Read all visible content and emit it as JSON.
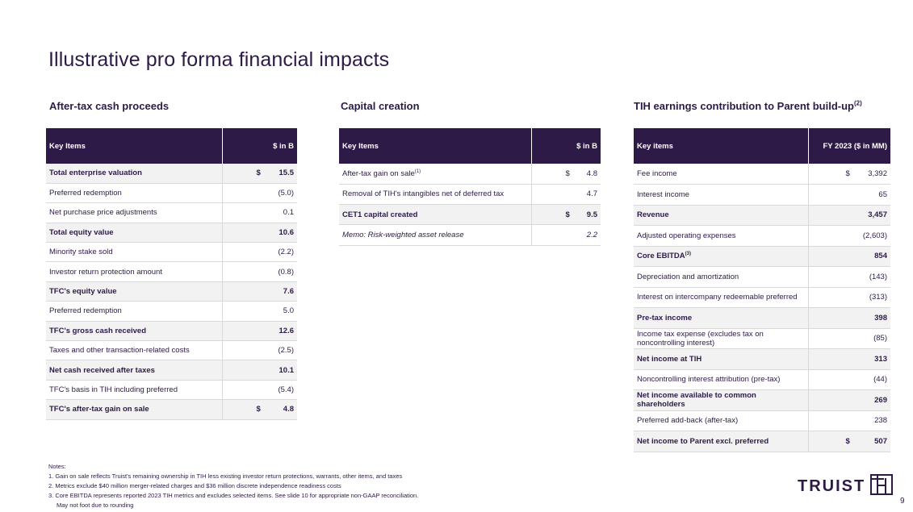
{
  "title": "Illustrative pro forma financial impacts",
  "sections": {
    "cash": {
      "title": "After-tax cash proceeds",
      "header": [
        "Key Items",
        "$ in B"
      ],
      "rows": [
        {
          "label": "Total enterprise valuation",
          "currency": "$",
          "value": "15.5"
        },
        {
          "label": "Preferred redemption",
          "value": "(5.0)"
        },
        {
          "label": "Net purchase price adjustments",
          "value": "0.1"
        },
        {
          "label": "Total equity value",
          "value": "10.6"
        },
        {
          "label": "Minority stake sold",
          "value": "(2.2)"
        },
        {
          "label": "Investor return protection amount",
          "value": "(0.8)"
        },
        {
          "label": "TFC's equity value",
          "value": "7.6"
        },
        {
          "label": "Preferred redemption",
          "value": "5.0"
        },
        {
          "label": "TFC's gross cash received",
          "value": "12.6"
        },
        {
          "label": "Taxes and other transaction-related costs",
          "value": "(2.5)"
        },
        {
          "label": "Net cash received after taxes",
          "value": "10.1"
        },
        {
          "label": "TFC's basis in TIH including preferred",
          "value": "(5.4)"
        },
        {
          "label": "TFC's after-tax gain on sale",
          "currency": "$",
          "value": "4.8"
        }
      ]
    },
    "capital": {
      "title": "Capital creation",
      "header": [
        "Key Items",
        "$ in B"
      ],
      "rows": [
        {
          "label": "After-tax gain on sale",
          "sup": "(1)",
          "currency": "$",
          "value": "4.8"
        },
        {
          "label": "Removal of TIH's intangibles net of deferred tax",
          "value": "4.7"
        },
        {
          "label": "CET1 capital created",
          "currency": "$",
          "value": "9.5"
        },
        {
          "label": "Memo: Risk-weighted asset release",
          "value": "2.2"
        }
      ]
    },
    "earnings": {
      "title": "TIH earnings contribution to Parent build-up",
      "title_sup": "(2)",
      "header": [
        "Key items",
        "FY 2023 ($ in MM)"
      ],
      "rows": [
        {
          "label": "Fee income",
          "currency": "$",
          "value": "3,392"
        },
        {
          "label": "Interest income",
          "value": "65"
        },
        {
          "label": "Revenue",
          "value": "3,457"
        },
        {
          "label": "Adjusted operating expenses",
          "value": "(2,603)"
        },
        {
          "label": "Core EBITDA",
          "sup": "(3)",
          "value": "854"
        },
        {
          "label": "Depreciation and amortization",
          "value": "(143)"
        },
        {
          "label": "Interest on intercompany redeemable preferred",
          "value": "(313)"
        },
        {
          "label": "Pre-tax income",
          "value": "398"
        },
        {
          "label": "Income tax expense (excludes tax on noncontrolling interest)",
          "value": "(85)"
        },
        {
          "label": "Net income at TIH",
          "value": "313"
        },
        {
          "label": "Noncontrolling interest attribution (pre-tax)",
          "value": "(44)"
        },
        {
          "label": "Net income available to common shareholders",
          "value": "269"
        },
        {
          "label": "Preferred add-back (after-tax)",
          "value": "238"
        },
        {
          "label": "Net income to Parent excl. preferred",
          "currency": "$",
          "value": "507"
        }
      ]
    }
  },
  "notes": {
    "heading": "Notes:",
    "items": [
      "1. Gain on sale reflects Truist's remaining ownership in TIH less existing investor return protections, warrants, other items, and taxes",
      "2. Metrics exclude $40 million merger-related charges and $36 million discrete independence readiness costs",
      "3. Core EBITDA represents reported 2023 TIH metrics and excludes selected items.  See slide 10 for appropriate non-GAAP reconciliation."
    ],
    "footer": "May not foot due to rounding"
  },
  "logo": {
    "text": "TRUIST",
    "icon": "truist-th-logo-icon"
  },
  "page_number": "9",
  "colors": {
    "brand_purple": "#2e1a47",
    "row_shade": "#f2f2f2",
    "rule": "#d9d9d9"
  }
}
